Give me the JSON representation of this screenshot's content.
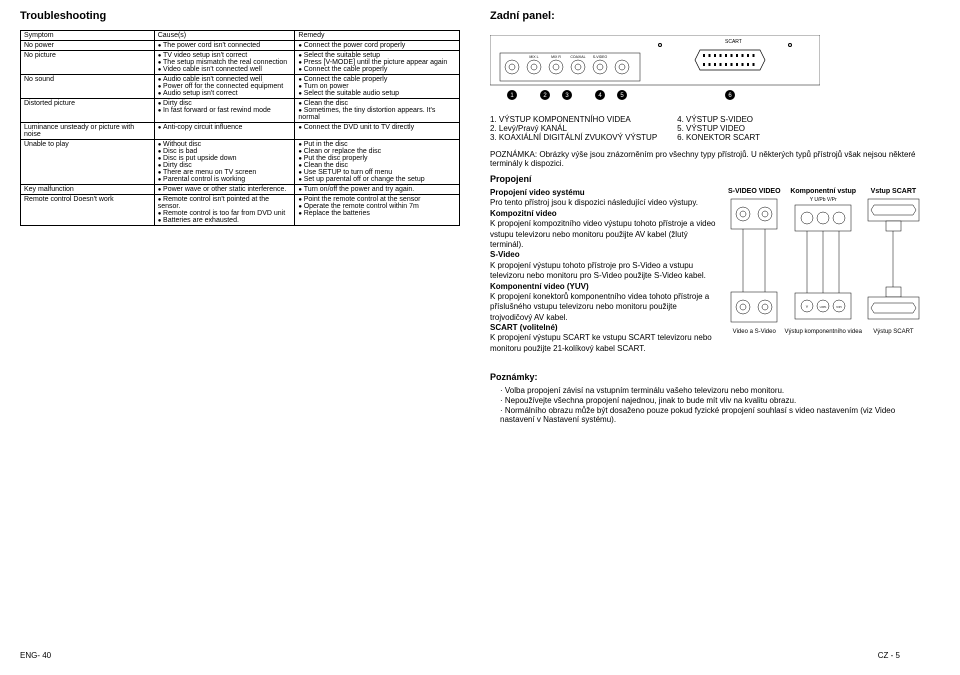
{
  "left": {
    "title": "Troubleshooting",
    "headers": [
      "Symptom",
      "Cause(s)",
      "Remedy"
    ],
    "rows": [
      {
        "s": "No power",
        "c": [
          "The power cord isn't connected"
        ],
        "r": [
          "Connect the power cord properly"
        ]
      },
      {
        "s": "No picture",
        "c": [
          "TV video setup isn't correct",
          "The setup mismatch the real connection",
          "Video cable isn't connected well"
        ],
        "r": [
          "Select the suitable setup",
          "Press [V-MODE] until the picture appear again",
          "Connect the cable properly"
        ]
      },
      {
        "s": "No sound",
        "c": [
          "Audio cable isn't connected well",
          "Power off for the connected equipment",
          "Audio setup isn't correct"
        ],
        "r": [
          "Connect the cable properly",
          "Turn on power",
          "Select the suitable audio setup"
        ]
      },
      {
        "s": "Distorted picture",
        "c": [
          "Dirty disc",
          "In fast forward or fast rewind mode"
        ],
        "r": [
          "Clean the disc",
          "Sometimes, the tiny distortion appears. It's normal"
        ]
      },
      {
        "s": "Luminance unsteady or picture with noise",
        "c": [
          "Anti-copy circuit influence"
        ],
        "r": [
          "Connect the DVD unit to TV directly"
        ]
      },
      {
        "s": "Unable to play",
        "c": [
          "Without disc",
          "Disc is bad",
          "Disc is put upside down",
          "Dirty disc",
          "There are menu on TV screen",
          "Parental control is working"
        ],
        "r": [
          "Put in the disc",
          "Clean or replace the disc",
          "Put the disc properly",
          "Clean the disc",
          "Use SETUP to turn off menu",
          "Set up parental off or change the setup"
        ]
      },
      {
        "s": "Key malfunction",
        "c": [
          "Power wave or other static interference."
        ],
        "r": [
          "Turn on/off the power and try again."
        ]
      },
      {
        "s": "Remote control Doesn't work",
        "c": [
          "Remote control isn't pointed at the sensor.",
          "Remote control is too far from DVD unit",
          "Batteries are exhausted."
        ],
        "r": [
          "Point the remote control at the sensor",
          "Operate the remote control within 7m",
          "Replace the batteries"
        ]
      }
    ]
  },
  "right": {
    "title": "Zadní panel:",
    "panel": {
      "ports": [
        "",
        "MIX L",
        "MIX R",
        "COAXIAL",
        "S-VIDEO",
        ""
      ],
      "scart_label": "SCART",
      "numbers": [
        "1",
        "2",
        "3",
        "4",
        "5",
        "6"
      ]
    },
    "legend_left": [
      "1. VÝSTUP KOMPONENTNÍHO VIDEA",
      "2. Levý/Pravý KANÁL",
      "3. KOAXIÁLNÍ DIGITÁLNÍ ZVUKOVÝ VÝSTUP"
    ],
    "legend_right": [
      "4. VÝSTUP S-VIDEO",
      "5. VÝSTUP VIDEO",
      "6. KONEKTOR SCART"
    ],
    "poznamka": "POZNÁMKA: Obrázky výše jsou znázorněním pro všechny typy přístrojů. U některých typů přístrojů však nejsou některé terminály k dispozici.",
    "propojeni_title": "Propojení",
    "conn": {
      "h1": "Propojení video systému",
      "p1": "Pro tento přístroj jsou k dispozici následující video výstupy.",
      "h2": "Kompozitní video",
      "p2": "K propojení kompozitního video výstupu tohoto přístroje a video vstupu televizoru nebo monitoru použijte AV kabel (žlutý terminál).",
      "h3": "S-Video",
      "p3": "K propojení výstupu tohoto přístroje pro S-Video a vstupu televizoru nebo monitoru pro S-Video použijte S-Video kabel.",
      "h4": "Komponentní video (YUV)",
      "p4": "K propojení konektorů komponentního videa tohoto přístroje a příslušného vstupu televizoru nebo monitoru použijte trojvodičový AV kabel.",
      "h5": "SCART (volitelné)",
      "p5": "K propojení výstupu SCART ke vstupu SCART televizoru nebo monitoru použijte 21-kolíkový kabel SCART."
    },
    "diag_labels": {
      "col1_top": "S-VIDEO  VIDEO",
      "col2_top": "Komponentní vstup",
      "col2_sub": "Y   U/Pb   V/Pr",
      "col3_top": "Vstup SCART",
      "col1_bot": "Video a S-Video",
      "col2_bot": "Výstup komponentního videa",
      "col3_bot": "Výstup SCART"
    },
    "notes_title": "Poznámky:",
    "notes": [
      "·   Volba propojení závisí na vstupním terminálu vašeho televizoru nebo monitoru.",
      "·   Nepoužívejte všechna propojení najednou, jinak to bude mít vliv na kvalitu obrazu.",
      "·   Normálního obrazu může být dosaženo pouze pokud fyzické propojení souhlasí s video nastavením (viz Video nastavení v Nastavení systému)."
    ]
  },
  "footer": {
    "left": "ENG- 40",
    "right": "CZ - 5"
  }
}
